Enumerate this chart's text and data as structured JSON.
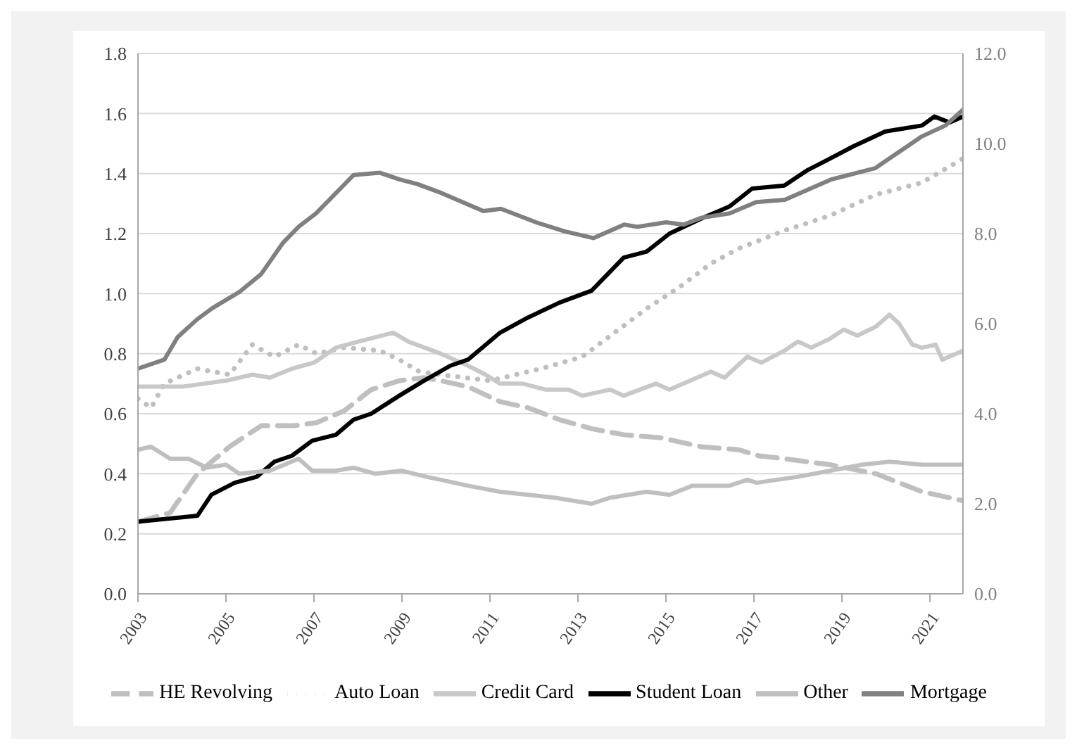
{
  "chart_data": {
    "type": "line",
    "xlim": [
      2003,
      2021.75
    ],
    "xticks": [
      2003,
      2005,
      2007,
      2009,
      2011,
      2013,
      2015,
      2017,
      2019,
      2021
    ],
    "ylim": [
      0,
      1.8
    ],
    "yticks": [
      {
        "value": 0,
        "label": "0.0"
      },
      {
        "value": 0.2,
        "label": "0.2"
      },
      {
        "value": 0.4,
        "label": "0.4"
      },
      {
        "value": 0.6,
        "label": "0.6"
      },
      {
        "value": 0.8,
        "label": "0.8"
      },
      {
        "value": 1,
        "label": "1.0"
      },
      {
        "value": 1.2,
        "label": "1.2"
      },
      {
        "value": 1.4,
        "label": "1.4"
      },
      {
        "value": 1.6,
        "label": "1.6"
      },
      {
        "value": 1.8,
        "label": "1.8"
      }
    ],
    "y2lim": [
      0,
      12
    ],
    "y2ticks": [
      {
        "value": 0,
        "label": "0.0"
      },
      {
        "value": 2,
        "label": "2.0"
      },
      {
        "value": 4,
        "label": "4.0"
      },
      {
        "value": 6,
        "label": "6.0"
      },
      {
        "value": 8,
        "label": "8.0"
      },
      {
        "value": 10,
        "label": "10.0"
      },
      {
        "value": 12,
        "label": "12.0"
      }
    ],
    "grid": "y",
    "legend": "bottom",
    "marker": "none",
    "series": [
      {
        "name": "HE Revolving",
        "color": "#bfbfbf",
        "line_style": "dashed",
        "x": [
          2003,
          2003.73,
          2004.35,
          2005.08,
          2005.8,
          2006.54,
          2007.06,
          2007.69,
          2008.3,
          2008.94,
          2009.5,
          2009.88,
          2010.5,
          2011.23,
          2011.86,
          2012.58,
          2013.31,
          2014.04,
          2014.88,
          2015.8,
          2016.65,
          2017.1,
          2017.69,
          2018.73,
          2019.77,
          2020.82,
          2021.75
        ],
        "values": [
          0.24,
          0.27,
          0.4,
          0.49,
          0.56,
          0.56,
          0.57,
          0.61,
          0.68,
          0.71,
          0.72,
          0.71,
          0.69,
          0.64,
          0.62,
          0.58,
          0.55,
          0.53,
          0.52,
          0.49,
          0.48,
          0.46,
          0.45,
          0.43,
          0.4,
          0.34,
          0.31
        ]
      },
      {
        "name": "Auto Loan",
        "color": "#bfbfbf",
        "line_style": "dotted",
        "x": [
          2003,
          2003.3,
          2003.6,
          2004.35,
          2005.08,
          2005.6,
          2006.1,
          2006.65,
          2007.06,
          2007.69,
          2008.5,
          2008.94,
          2009.4,
          2009.88,
          2011.0,
          2012.17,
          2013.1,
          2013.83,
          2014.56,
          2015.29,
          2016.02,
          2016.65,
          2017.69,
          2018.73,
          2019.77,
          2020.82,
          2021.75
        ],
        "values": [
          0.65,
          0.62,
          0.7,
          0.75,
          0.73,
          0.83,
          0.79,
          0.83,
          0.8,
          0.82,
          0.81,
          0.78,
          0.74,
          0.73,
          0.71,
          0.75,
          0.79,
          0.87,
          0.95,
          1.02,
          1.1,
          1.15,
          1.21,
          1.26,
          1.33,
          1.37,
          1.45
        ]
      },
      {
        "name": "Credit Card",
        "color": "#c8c8c8",
        "line_style": "solid",
        "x": [
          2003,
          2004,
          2005,
          2005.6,
          2006,
          2006.5,
          2007,
          2007.5,
          2008,
          2008.8,
          2009.15,
          2009.88,
          2010.5,
          2010.9,
          2011.23,
          2011.75,
          2012.27,
          2012.79,
          2013.1,
          2013.73,
          2014.04,
          2014.77,
          2015.08,
          2016.02,
          2016.33,
          2016.85,
          2017.17,
          2017.69,
          2018.0,
          2018.3,
          2018.73,
          2019.04,
          2019.35,
          2019.77,
          2020.08,
          2020.3,
          2020.6,
          2020.82,
          2021.13,
          2021.28,
          2021.75
        ],
        "values": [
          0.69,
          0.69,
          0.71,
          0.73,
          0.72,
          0.75,
          0.77,
          0.82,
          0.84,
          0.87,
          0.84,
          0.8,
          0.76,
          0.73,
          0.7,
          0.7,
          0.68,
          0.68,
          0.66,
          0.68,
          0.66,
          0.7,
          0.68,
          0.74,
          0.72,
          0.79,
          0.77,
          0.81,
          0.84,
          0.82,
          0.85,
          0.88,
          0.86,
          0.89,
          0.93,
          0.9,
          0.83,
          0.82,
          0.83,
          0.78,
          0.81
        ]
      },
      {
        "name": "Student Loan",
        "color": "#000000",
        "line_style": "solid",
        "x": [
          2003,
          2004.35,
          2004.67,
          2005.2,
          2005.7,
          2006.1,
          2006.5,
          2006.96,
          2007.5,
          2007.9,
          2008.3,
          2008.94,
          2009.5,
          2010.1,
          2010.5,
          2011.23,
          2011.86,
          2012.58,
          2013.31,
          2014.04,
          2014.56,
          2015.08,
          2015.8,
          2016.44,
          2016.96,
          2017.69,
          2018.2,
          2018.73,
          2019.25,
          2019.98,
          2020.82,
          2021.1,
          2021.45,
          2021.75
        ],
        "values": [
          0.24,
          0.26,
          0.33,
          0.37,
          0.39,
          0.44,
          0.46,
          0.51,
          0.53,
          0.58,
          0.6,
          0.66,
          0.71,
          0.76,
          0.78,
          0.87,
          0.92,
          0.97,
          1.01,
          1.12,
          1.14,
          1.2,
          1.25,
          1.29,
          1.35,
          1.36,
          1.41,
          1.45,
          1.49,
          1.54,
          1.56,
          1.59,
          1.57,
          1.59
        ]
      },
      {
        "name": "Other",
        "color": "#bfbfbf",
        "line_style": "solid",
        "x": [
          2003,
          2003.3,
          2003.73,
          2004.15,
          2004.56,
          2005.0,
          2005.3,
          2006.0,
          2006.65,
          2006.96,
          2007.5,
          2007.9,
          2008.4,
          2009.0,
          2009.55,
          2009.88,
          2010.5,
          2011.23,
          2011.86,
          2012.48,
          2013.31,
          2013.73,
          2014.56,
          2015.08,
          2015.6,
          2016.44,
          2016.85,
          2017.06,
          2018.0,
          2018.73,
          2019.46,
          2020.08,
          2020.82,
          2021.23,
          2021.75
        ],
        "values": [
          0.48,
          0.49,
          0.45,
          0.45,
          0.42,
          0.43,
          0.4,
          0.41,
          0.45,
          0.41,
          0.41,
          0.42,
          0.4,
          0.41,
          0.39,
          0.38,
          0.36,
          0.34,
          0.33,
          0.32,
          0.3,
          0.32,
          0.34,
          0.33,
          0.36,
          0.36,
          0.38,
          0.37,
          0.39,
          0.41,
          0.43,
          0.44,
          0.43,
          0.43,
          0.43
        ]
      },
      {
        "name": "Mortgage",
        "color": "#808080",
        "line_style": "solid",
        "axis": "y2",
        "x": [
          2003,
          2003.6,
          2003.9,
          2004.35,
          2004.7,
          2005.3,
          2005.8,
          2006.3,
          2006.65,
          2007.05,
          2007.5,
          2007.9,
          2008.5,
          2008.95,
          2009.35,
          2009.9,
          2010.85,
          2011.25,
          2012.05,
          2012.7,
          2013.35,
          2014.05,
          2014.35,
          2015.0,
          2015.4,
          2015.8,
          2016.45,
          2017.05,
          2017.7,
          2018.75,
          2019.75,
          2020.8,
          2021.35,
          2021.75
        ],
        "values": [
          5.0,
          5.2,
          5.7,
          6.1,
          6.35,
          6.7,
          7.1,
          7.8,
          8.15,
          8.45,
          8.9,
          9.3,
          9.35,
          9.2,
          9.1,
          8.9,
          8.5,
          8.55,
          8.25,
          8.05,
          7.9,
          8.2,
          8.15,
          8.25,
          8.2,
          8.35,
          8.45,
          8.7,
          8.75,
          9.2,
          9.45,
          10.15,
          10.4,
          10.75
        ]
      }
    ]
  }
}
